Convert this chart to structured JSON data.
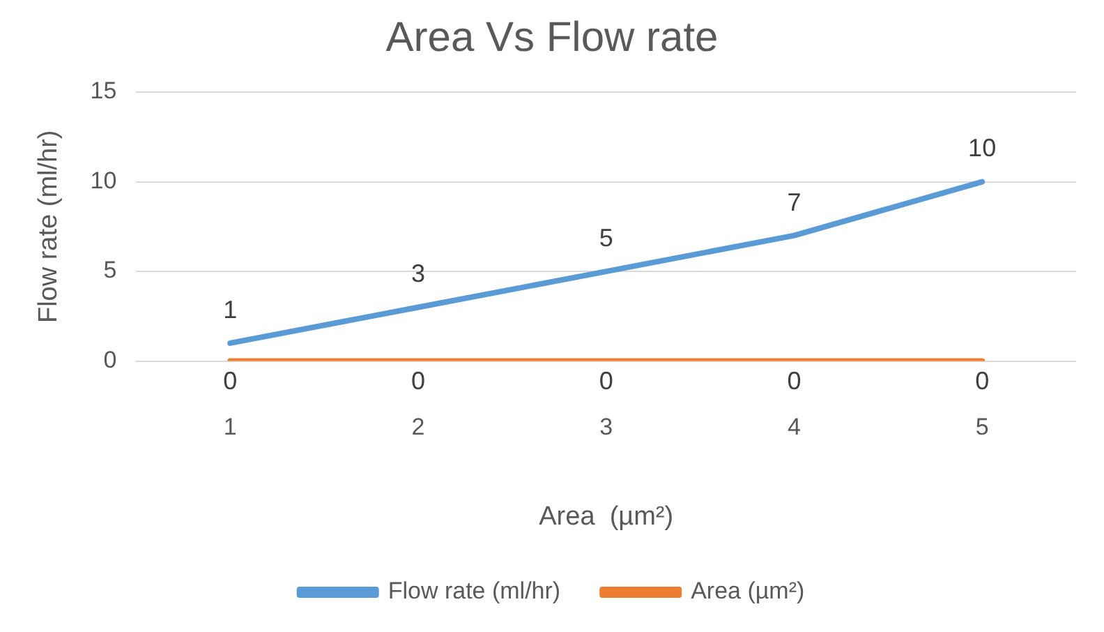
{
  "chart_data": {
    "type": "line",
    "title": "Area Vs Flow rate",
    "xlabel": "Area  (µm²)",
    "ylabel": "Flow rate (ml/hr)",
    "categories": [
      "1",
      "2",
      "3",
      "4",
      "5"
    ],
    "series": [
      {
        "name": "Flow rate (ml/hr)",
        "color": "#5b9bd5",
        "values": [
          1,
          3,
          5,
          7,
          10
        ]
      },
      {
        "name": "Area (µm²)",
        "color": "#ed7d31",
        "values": [
          0,
          0,
          0,
          0,
          0
        ]
      }
    ],
    "ylim": [
      0,
      15
    ],
    "yticks": [
      0,
      5,
      10,
      15
    ],
    "grid": "y",
    "legend": "bottom",
    "data_labels": true,
    "marker": "none",
    "line_style": "solid"
  }
}
